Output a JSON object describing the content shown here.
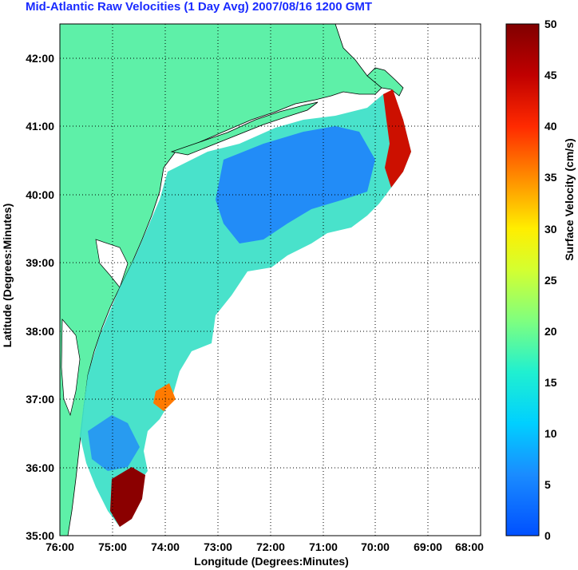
{
  "title": "Mid-Atlantic Raw Velocities (1 Day Avg) 2007/08/16 1200 GMT",
  "xlabel": "Longitude (Degrees:Minutes)",
  "ylabel": "Latitude (Degrees:Minutes)",
  "colorbar_label": "Surface Velocity (cm/s)",
  "x_ticks": [
    "76:00",
    "75:00",
    "74:00",
    "73:00",
    "72:00",
    "71:00",
    "70:00",
    "69:00",
    "68:00"
  ],
  "y_ticks": [
    "42:00",
    "41:00",
    "40:00",
    "39:00",
    "38:00",
    "37:00",
    "36:00",
    "35:00"
  ],
  "colorbar_ticks": [
    "50",
    "45",
    "40",
    "35",
    "30",
    "25",
    "20",
    "15",
    "10",
    "5",
    "0"
  ],
  "colors": {
    "land": "#5ef0a8",
    "title": "#1a2bff",
    "low": "#1b7dff",
    "mid": "#3fe0c8",
    "high": "#8b0000"
  },
  "chart_data": {
    "type": "heatmap",
    "title": "Mid-Atlantic Raw Velocities (1 Day Avg) 2007/08/16 1200 GMT",
    "xlabel": "Longitude (Degrees:Minutes)",
    "ylabel": "Latitude (Degrees:Minutes)",
    "xlim": [
      76,
      68
    ],
    "ylim": [
      35,
      42.5
    ],
    "colorbar": {
      "label": "Surface Velocity (cm/s)",
      "min": 0,
      "max": 50
    },
    "grid": true
  }
}
